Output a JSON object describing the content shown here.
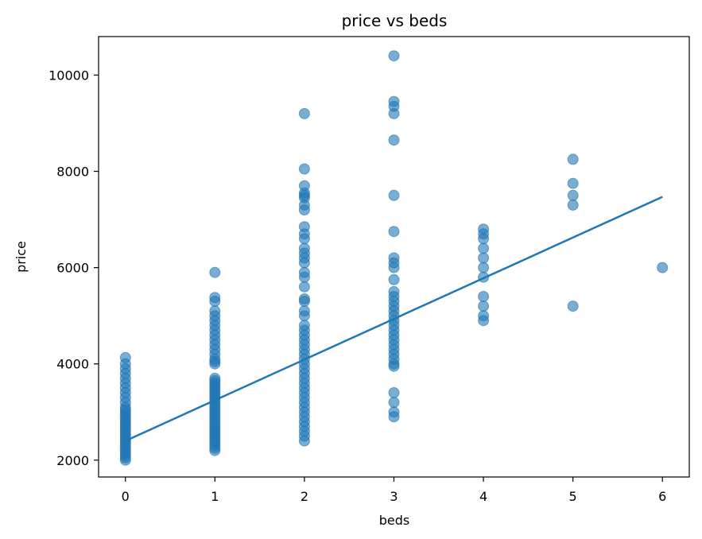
{
  "chart_data": {
    "type": "scatter",
    "title": "price vs beds",
    "xlabel": "beds",
    "ylabel": "price",
    "xlim": [
      -0.3,
      6.3
    ],
    "ylim": [
      1650,
      10800
    ],
    "x_ticks": [
      0,
      1,
      2,
      3,
      4,
      5,
      6
    ],
    "y_ticks": [
      2000,
      4000,
      6000,
      8000,
      10000
    ],
    "grid": false,
    "point_color": "#1f77b4",
    "line_color": "#1f77b4",
    "points": [
      [
        0,
        2000
      ],
      [
        0,
        2050
      ],
      [
        0,
        2100
      ],
      [
        0,
        2150
      ],
      [
        0,
        2200
      ],
      [
        0,
        2250
      ],
      [
        0,
        2300
      ],
      [
        0,
        2350
      ],
      [
        0,
        2400
      ],
      [
        0,
        2450
      ],
      [
        0,
        2500
      ],
      [
        0,
        2550
      ],
      [
        0,
        2600
      ],
      [
        0,
        2650
      ],
      [
        0,
        2700
      ],
      [
        0,
        2750
      ],
      [
        0,
        2800
      ],
      [
        0,
        2850
      ],
      [
        0,
        2900
      ],
      [
        0,
        2950
      ],
      [
        0,
        3000
      ],
      [
        0,
        3050
      ],
      [
        0,
        3100
      ],
      [
        0,
        3200
      ],
      [
        0,
        3300
      ],
      [
        0,
        3400
      ],
      [
        0,
        3500
      ],
      [
        0,
        3600
      ],
      [
        0,
        3700
      ],
      [
        0,
        3800
      ],
      [
        0,
        3900
      ],
      [
        0,
        4000
      ],
      [
        0,
        4130
      ],
      [
        1,
        2200
      ],
      [
        1,
        2250
      ],
      [
        1,
        2300
      ],
      [
        1,
        2350
      ],
      [
        1,
        2400
      ],
      [
        1,
        2450
      ],
      [
        1,
        2500
      ],
      [
        1,
        2550
      ],
      [
        1,
        2600
      ],
      [
        1,
        2650
      ],
      [
        1,
        2700
      ],
      [
        1,
        2750
      ],
      [
        1,
        2800
      ],
      [
        1,
        2850
      ],
      [
        1,
        2900
      ],
      [
        1,
        2950
      ],
      [
        1,
        3000
      ],
      [
        1,
        3050
      ],
      [
        1,
        3100
      ],
      [
        1,
        3150
      ],
      [
        1,
        3200
      ],
      [
        1,
        3250
      ],
      [
        1,
        3300
      ],
      [
        1,
        3350
      ],
      [
        1,
        3400
      ],
      [
        1,
        3450
      ],
      [
        1,
        3500
      ],
      [
        1,
        3550
      ],
      [
        1,
        3600
      ],
      [
        1,
        3650
      ],
      [
        1,
        3700
      ],
      [
        1,
        4000
      ],
      [
        1,
        4050
      ],
      [
        1,
        4100
      ],
      [
        1,
        4200
      ],
      [
        1,
        4300
      ],
      [
        1,
        4400
      ],
      [
        1,
        4500
      ],
      [
        1,
        4600
      ],
      [
        1,
        4700
      ],
      [
        1,
        4800
      ],
      [
        1,
        4900
      ],
      [
        1,
        5000
      ],
      [
        1,
        5100
      ],
      [
        1,
        5300
      ],
      [
        1,
        5380
      ],
      [
        1,
        5900
      ],
      [
        2,
        2400
      ],
      [
        2,
        2500
      ],
      [
        2,
        2600
      ],
      [
        2,
        2700
      ],
      [
        2,
        2800
      ],
      [
        2,
        2900
      ],
      [
        2,
        3000
      ],
      [
        2,
        3100
      ],
      [
        2,
        3200
      ],
      [
        2,
        3300
      ],
      [
        2,
        3400
      ],
      [
        2,
        3500
      ],
      [
        2,
        3600
      ],
      [
        2,
        3700
      ],
      [
        2,
        3800
      ],
      [
        2,
        3900
      ],
      [
        2,
        4000
      ],
      [
        2,
        4100
      ],
      [
        2,
        4200
      ],
      [
        2,
        4300
      ],
      [
        2,
        4400
      ],
      [
        2,
        4500
      ],
      [
        2,
        4600
      ],
      [
        2,
        4700
      ],
      [
        2,
        4800
      ],
      [
        2,
        5000
      ],
      [
        2,
        5100
      ],
      [
        2,
        5300
      ],
      [
        2,
        5350
      ],
      [
        2,
        5600
      ],
      [
        2,
        5800
      ],
      [
        2,
        5900
      ],
      [
        2,
        6100
      ],
      [
        2,
        6200
      ],
      [
        2,
        6300
      ],
      [
        2,
        6400
      ],
      [
        2,
        6600
      ],
      [
        2,
        6700
      ],
      [
        2,
        6850
      ],
      [
        2,
        7200
      ],
      [
        2,
        7300
      ],
      [
        2,
        7450
      ],
      [
        2,
        7500
      ],
      [
        2,
        7550
      ],
      [
        2,
        7700
      ],
      [
        2,
        8050
      ],
      [
        2,
        9200
      ],
      [
        3,
        2900
      ],
      [
        3,
        3000
      ],
      [
        3,
        3200
      ],
      [
        3,
        3400
      ],
      [
        3,
        3950
      ],
      [
        3,
        4000
      ],
      [
        3,
        4100
      ],
      [
        3,
        4200
      ],
      [
        3,
        4300
      ],
      [
        3,
        4400
      ],
      [
        3,
        4500
      ],
      [
        3,
        4600
      ],
      [
        3,
        4700
      ],
      [
        3,
        4800
      ],
      [
        3,
        4900
      ],
      [
        3,
        5000
      ],
      [
        3,
        5100
      ],
      [
        3,
        5200
      ],
      [
        3,
        5300
      ],
      [
        3,
        5400
      ],
      [
        3,
        5500
      ],
      [
        3,
        5750
      ],
      [
        3,
        6000
      ],
      [
        3,
        6100
      ],
      [
        3,
        6200
      ],
      [
        3,
        6750
      ],
      [
        3,
        7500
      ],
      [
        3,
        8650
      ],
      [
        3,
        9200
      ],
      [
        3,
        9350
      ],
      [
        3,
        9450
      ],
      [
        3,
        10400
      ],
      [
        4,
        4900
      ],
      [
        4,
        5000
      ],
      [
        4,
        5200
      ],
      [
        4,
        5400
      ],
      [
        4,
        5800
      ],
      [
        4,
        6000
      ],
      [
        4,
        6200
      ],
      [
        4,
        6400
      ],
      [
        4,
        6600
      ],
      [
        4,
        6700
      ],
      [
        4,
        6800
      ],
      [
        5,
        5200
      ],
      [
        5,
        7300
      ],
      [
        5,
        7500
      ],
      [
        5,
        7750
      ],
      [
        5,
        8250
      ],
      [
        6,
        6000
      ]
    ],
    "trend_line": {
      "x": [
        0,
        6
      ],
      "y": [
        2400,
        7470
      ]
    }
  }
}
